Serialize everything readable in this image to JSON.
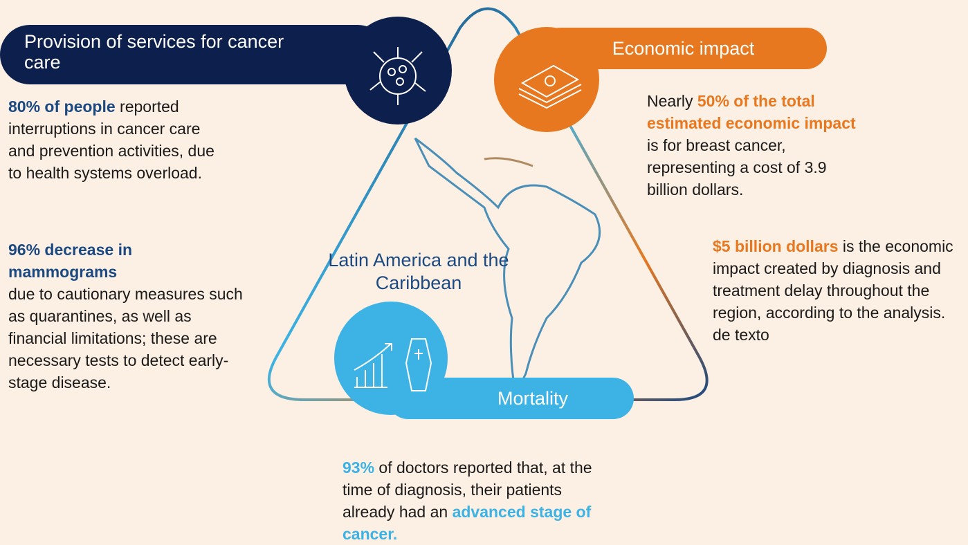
{
  "provision": {
    "title": "Provision of services for cancer care",
    "item1": {
      "bold": "80% of people",
      "text": " reported interruptions in cancer care and prevention activities, due  to health systems overload."
    },
    "item2": {
      "bold": "96% decrease in mammograms",
      "text": "due to cautionary measures such as quarantines, as well as financial limitations; these are necessary tests to detect early-stage disease."
    }
  },
  "center": {
    "label": "Latin America and the Caribbean"
  },
  "economic": {
    "title": "Economic impact",
    "item1": {
      "pre": "Nearly ",
      "bold": "50% of the total estimated economic impact",
      "text": " is for breast cancer, representing a cost of 3.9 billion dollars."
    },
    "item2": {
      "bold": "$5 billion dollars",
      "text": " is the economic impact created by diagnosis and treatment delay throughout the region, according to the analysis. de texto"
    }
  },
  "mortality": {
    "title": "Mortality",
    "item1": {
      "bold": "93%",
      "text": " of doctors reported that, at the time of diagnosis, their patients already had an ",
      "bold2": "advanced stage of cancer."
    }
  }
}
